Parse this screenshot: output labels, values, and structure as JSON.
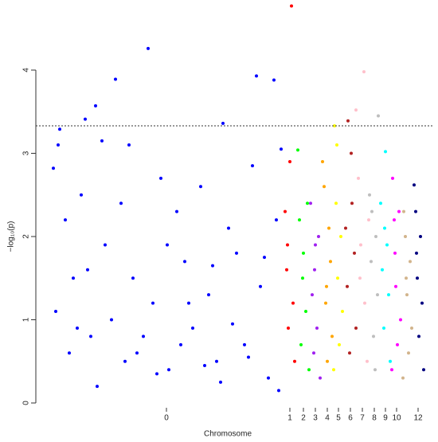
{
  "chart_data": {
    "type": "scatter",
    "x_label": "Chromosome",
    "y_label": "−log₁₀(p)",
    "xlim": [
      0,
      480
    ],
    "ylim": [
      0,
      4.8
    ],
    "yticks": [
      0,
      1,
      2,
      3,
      4
    ],
    "xticks": [
      {
        "value": 147,
        "label": "0"
      },
      {
        "value": 302,
        "label": "1"
      },
      {
        "value": 319,
        "label": "2"
      },
      {
        "value": 334,
        "label": "3"
      },
      {
        "value": 349,
        "label": "4"
      },
      {
        "value": 363,
        "label": "5"
      },
      {
        "value": 378,
        "label": "6"
      },
      {
        "value": 393,
        "label": "7"
      },
      {
        "value": 408,
        "label": "8"
      },
      {
        "value": 422,
        "label": "9"
      },
      {
        "value": 436,
        "label": "10"
      },
      {
        "value": 463,
        "label": "12"
      }
    ],
    "threshold": 3.33,
    "series": [
      {
        "color": "#0000ff",
        "x": [
          124,
          83,
          260,
          282,
          58,
          45,
          13,
          218,
          66,
          100,
          11,
          291,
          5,
          20,
          30,
          40,
          52,
          70,
          90,
          110,
          130,
          140,
          150,
          160,
          170,
          180,
          190,
          200,
          210,
          225,
          235,
          245,
          255,
          265,
          275,
          285,
          8,
          25,
          35,
          48,
          60,
          78,
          95,
          105,
          118,
          135,
          148,
          165,
          175,
          195,
          205,
          215,
          230,
          250,
          270,
          288
        ],
        "values": [
          4.26,
          3.89,
          3.93,
          3.88,
          3.57,
          3.41,
          3.29,
          3.36,
          3.15,
          3.1,
          3.1,
          3.05,
          2.82,
          2.2,
          1.5,
          2.5,
          0.8,
          1.9,
          2.4,
          0.6,
          1.2,
          2.7,
          0.4,
          2.3,
          1.7,
          0.9,
          2.6,
          1.3,
          0.5,
          2.1,
          1.8,
          0.7,
          2.85,
          1.4,
          0.3,
          2.2,
          1.1,
          0.6,
          0.9,
          1.6,
          0.2,
          1.0,
          0.5,
          1.5,
          0.8,
          0.35,
          1.9,
          0.7,
          1.2,
          0.45,
          1.65,
          0.25,
          0.95,
          0.55,
          1.75,
          0.15
        ]
      },
      {
        "color": "#ff0000",
        "x": [
          304,
          296,
          298,
          300,
          302,
          306,
          308,
          299
        ],
        "values": [
          4.77,
          2.3,
          1.6,
          0.9,
          2.9,
          1.2,
          0.5,
          1.9
        ]
      },
      {
        "color": "#00ff00",
        "x": [
          312,
          314,
          316,
          319,
          322,
          324,
          326,
          318
        ],
        "values": [
          3.04,
          2.2,
          0.7,
          1.8,
          1.1,
          2.4,
          0.4,
          1.5
        ]
      },
      {
        "color": "#a020f0",
        "x": [
          328,
          330,
          332,
          334,
          336,
          338,
          340,
          333
        ],
        "values": [
          2.4,
          1.3,
          0.6,
          1.9,
          0.9,
          2.0,
          0.3,
          1.6
        ]
      },
      {
        "color": "#ffa500",
        "x": [
          343,
          345,
          347,
          349,
          351,
          353,
          355,
          348
        ],
        "values": [
          2.9,
          2.6,
          1.2,
          0.5,
          2.1,
          1.7,
          0.8,
          1.4
        ]
      },
      {
        "color": "#ffff00",
        "x": [
          358,
          360,
          362,
          364,
          366,
          368,
          357,
          361
        ],
        "values": [
          3.33,
          2.4,
          1.5,
          0.7,
          2.0,
          1.1,
          0.4,
          3.1
        ]
      },
      {
        "color": "#b22222",
        "x": [
          375,
          372,
          374,
          377,
          380,
          383,
          385,
          379
        ],
        "values": [
          3.39,
          2.1,
          1.4,
          0.6,
          2.4,
          1.8,
          0.9,
          3.0
        ]
      },
      {
        "color": "#ffc0cb",
        "x": [
          395,
          385,
          388,
          391,
          396,
          399,
          401,
          390
        ],
        "values": [
          3.98,
          3.52,
          2.7,
          1.9,
          1.2,
          0.5,
          2.2,
          1.5
        ]
      },
      {
        "color": "#bebebe",
        "x": [
          413,
          402,
          404,
          407,
          410,
          412,
          409,
          405
        ],
        "values": [
          3.45,
          2.5,
          1.7,
          0.8,
          2.0,
          1.3,
          0.4,
          2.3
        ]
      },
      {
        "color": "#00ffff",
        "x": [
          422,
          416,
          418,
          420,
          424,
          426,
          428,
          421
        ],
        "values": [
          3.02,
          2.4,
          1.6,
          0.9,
          1.9,
          1.3,
          0.5,
          2.1
        ]
      },
      {
        "color": "#ff00ff",
        "x": [
          431,
          433,
          435,
          437,
          439,
          441,
          430,
          434
        ],
        "values": [
          2.7,
          2.2,
          1.4,
          0.7,
          2.3,
          1.0,
          0.4,
          1.8
        ]
      },
      {
        "color": "#d2b48c",
        "x": [
          445,
          447,
          449,
          451,
          453,
          455,
          444,
          448
        ],
        "values": [
          2.3,
          2.0,
          1.3,
          0.6,
          1.7,
          0.9,
          0.3,
          1.5
        ]
      },
      {
        "color": "#000080",
        "x": [
          458,
          460,
          462,
          464,
          466,
          468,
          470,
          461
        ],
        "values": [
          2.62,
          2.3,
          1.5,
          0.8,
          2.0,
          1.2,
          0.4,
          1.8
        ]
      }
    ]
  }
}
